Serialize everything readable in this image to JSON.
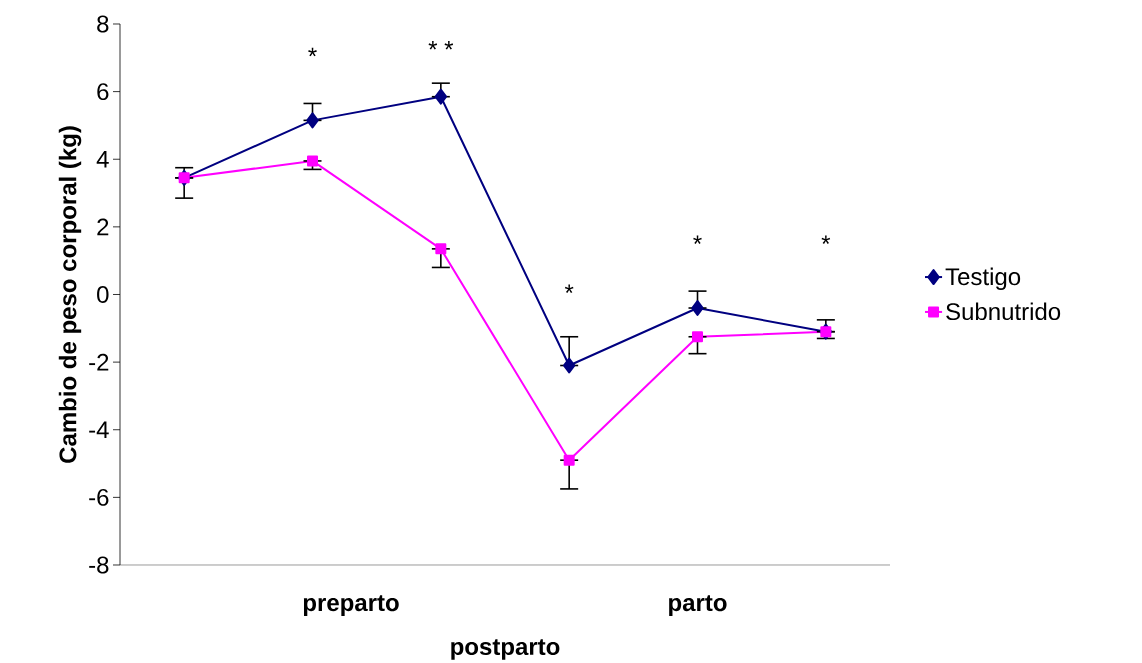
{
  "chart_data": {
    "type": "line",
    "ylabel": "Cambio de peso corporal (kg)",
    "categories": [
      null,
      null,
      null,
      null,
      null,
      null
    ],
    "series": [
      {
        "name": "Testigo",
        "color": "#000080",
        "marker": "diamond",
        "values": [
          3.45,
          5.15,
          5.85,
          -2.1,
          -0.4,
          -1.1
        ],
        "errors": [
          [
            3.45,
            3.75
          ],
          [
            5.15,
            5.65
          ],
          [
            5.85,
            6.25
          ],
          [
            -2.1,
            -1.25
          ],
          [
            -0.4,
            0.1
          ],
          [
            -1.1,
            -0.75
          ]
        ]
      },
      {
        "name": "Subnutrido",
        "color": "#ff00ff",
        "marker": "square",
        "values": [
          3.45,
          3.95,
          1.35,
          -4.9,
          -1.25,
          -1.1
        ],
        "errors": [
          [
            2.85,
            3.45
          ],
          [
            3.7,
            3.95
          ],
          [
            0.8,
            1.35
          ],
          [
            -5.75,
            -4.9
          ],
          [
            -1.75,
            -1.25
          ],
          [
            -1.3,
            -1.1
          ]
        ]
      }
    ],
    "ylim": [
      -8,
      8
    ],
    "yticks": [
      -8,
      -6,
      -4,
      -2,
      0,
      2,
      4,
      6,
      8
    ],
    "grid": false,
    "legend": "right",
    "line_style": "solid",
    "annotations": [
      "*",
      "* *",
      "*",
      "*",
      "*",
      "preparto",
      "postparto",
      "parto"
    ]
  }
}
